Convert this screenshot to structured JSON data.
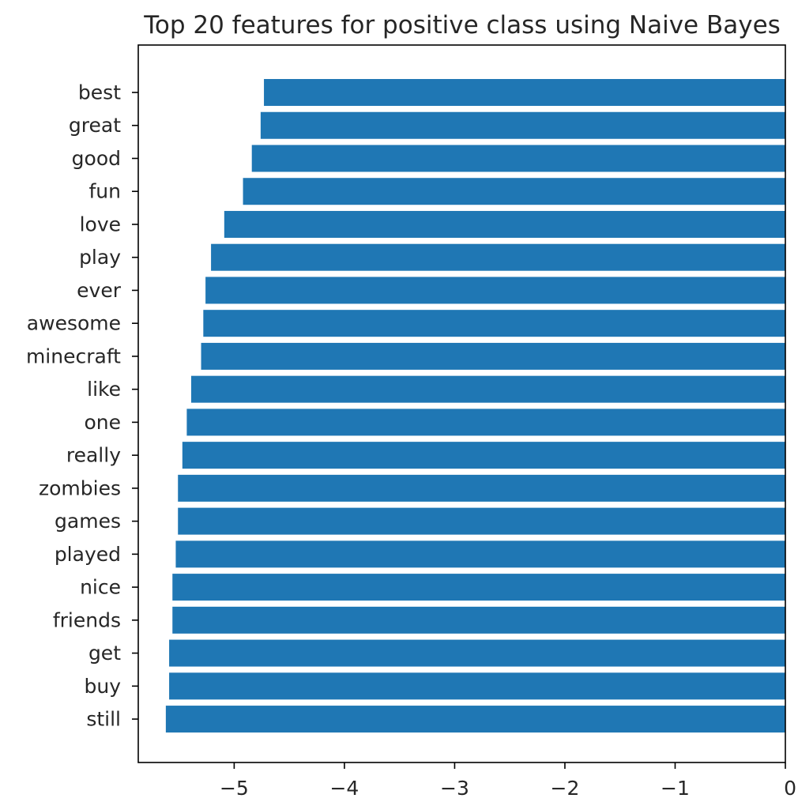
{
  "chart_data": {
    "type": "bar",
    "orientation": "horizontal",
    "title": "Top 20 features for positive class using Naive Bayes",
    "xlabel": "",
    "ylabel": "",
    "xlim": [
      -5.87,
      0
    ],
    "x_ticks": [
      -5,
      -4,
      -3,
      -2,
      -1,
      0
    ],
    "x_tick_labels": [
      "−5",
      "−4",
      "−3",
      "−2",
      "−1",
      "0"
    ],
    "grid": false,
    "legend": null,
    "bar_color": "#1f77b4",
    "categories": [
      "best",
      "great",
      "good",
      "fun",
      "love",
      "play",
      "ever",
      "awesome",
      "minecraft",
      "like",
      "one",
      "really",
      "zombies",
      "games",
      "played",
      "nice",
      "friends",
      "get",
      "buy",
      "still"
    ],
    "values": [
      -4.73,
      -4.76,
      -4.84,
      -4.92,
      -5.09,
      -5.21,
      -5.26,
      -5.28,
      -5.3,
      -5.39,
      -5.43,
      -5.47,
      -5.51,
      -5.51,
      -5.53,
      -5.56,
      -5.56,
      -5.59,
      -5.59,
      -5.62
    ]
  }
}
